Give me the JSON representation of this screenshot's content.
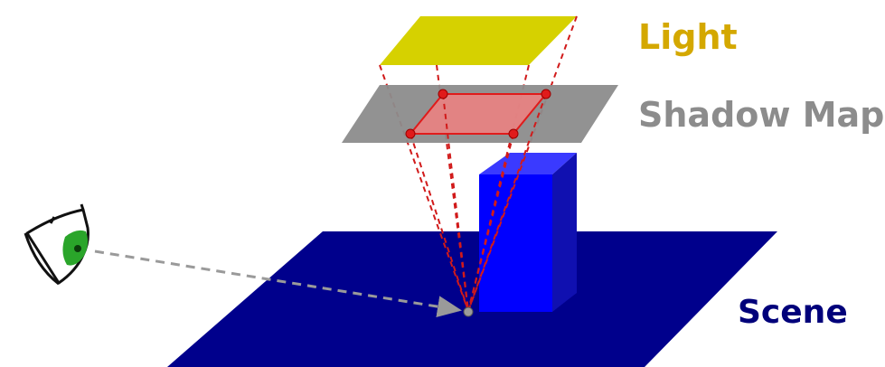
{
  "labels": {
    "light": "Light",
    "shadow_map": "Shadow Map",
    "scene": "Scene"
  },
  "colors": {
    "light_plane": "#d6d100",
    "light_label": "#d4a800",
    "shadow_map_plane": "#8c8c8c",
    "shadow_map_label": "#8c8c8c",
    "shadow_sample_region": "#f08080",
    "projection_lines": "#d11a1a",
    "scene_plane": "#00008c",
    "scene_label": "#00007a",
    "occluder_box": "#0000ff",
    "eye_iris": "#2aa52a",
    "view_ray": "#999999"
  },
  "icons": {
    "viewer": "eye-icon"
  }
}
